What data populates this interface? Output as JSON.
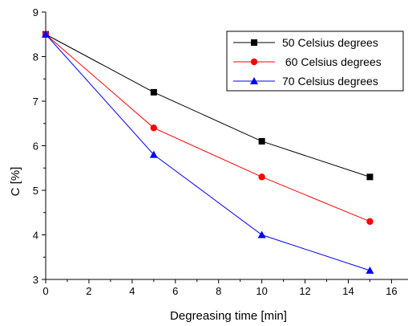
{
  "chart_data": {
    "type": "line",
    "xlabel": "Degreasing time [min]",
    "ylabel": "C [%]",
    "xlim": [
      0,
      16.8
    ],
    "ylim": [
      3,
      9
    ],
    "x_ticks": [
      0,
      2,
      4,
      6,
      8,
      10,
      12,
      14,
      16
    ],
    "y_ticks": [
      3,
      4,
      5,
      6,
      7,
      8,
      9
    ],
    "x_tick_labels": [
      "0",
      "2",
      "4",
      "6",
      "8",
      "10",
      "12",
      "14",
      "16"
    ],
    "y_tick_labels": [
      "3",
      "4",
      "5",
      "6",
      "7",
      "8",
      "9"
    ],
    "grid": false,
    "legend_position": "top-right",
    "x": [
      0,
      5,
      10,
      15
    ],
    "series": [
      {
        "name": "50 Celsius degrees",
        "values": [
          8.5,
          7.2,
          6.1,
          5.3
        ],
        "color": "#000000",
        "marker": "square"
      },
      {
        "name": " 60 Celsius degrees",
        "values": [
          8.5,
          6.4,
          5.3,
          4.3
        ],
        "color": "#ff0000",
        "marker": "circle"
      },
      {
        "name": "70 Celsius degrees",
        "values": [
          8.5,
          5.8,
          4.0,
          3.2
        ],
        "color": "#0000ff",
        "marker": "triangle"
      }
    ]
  }
}
